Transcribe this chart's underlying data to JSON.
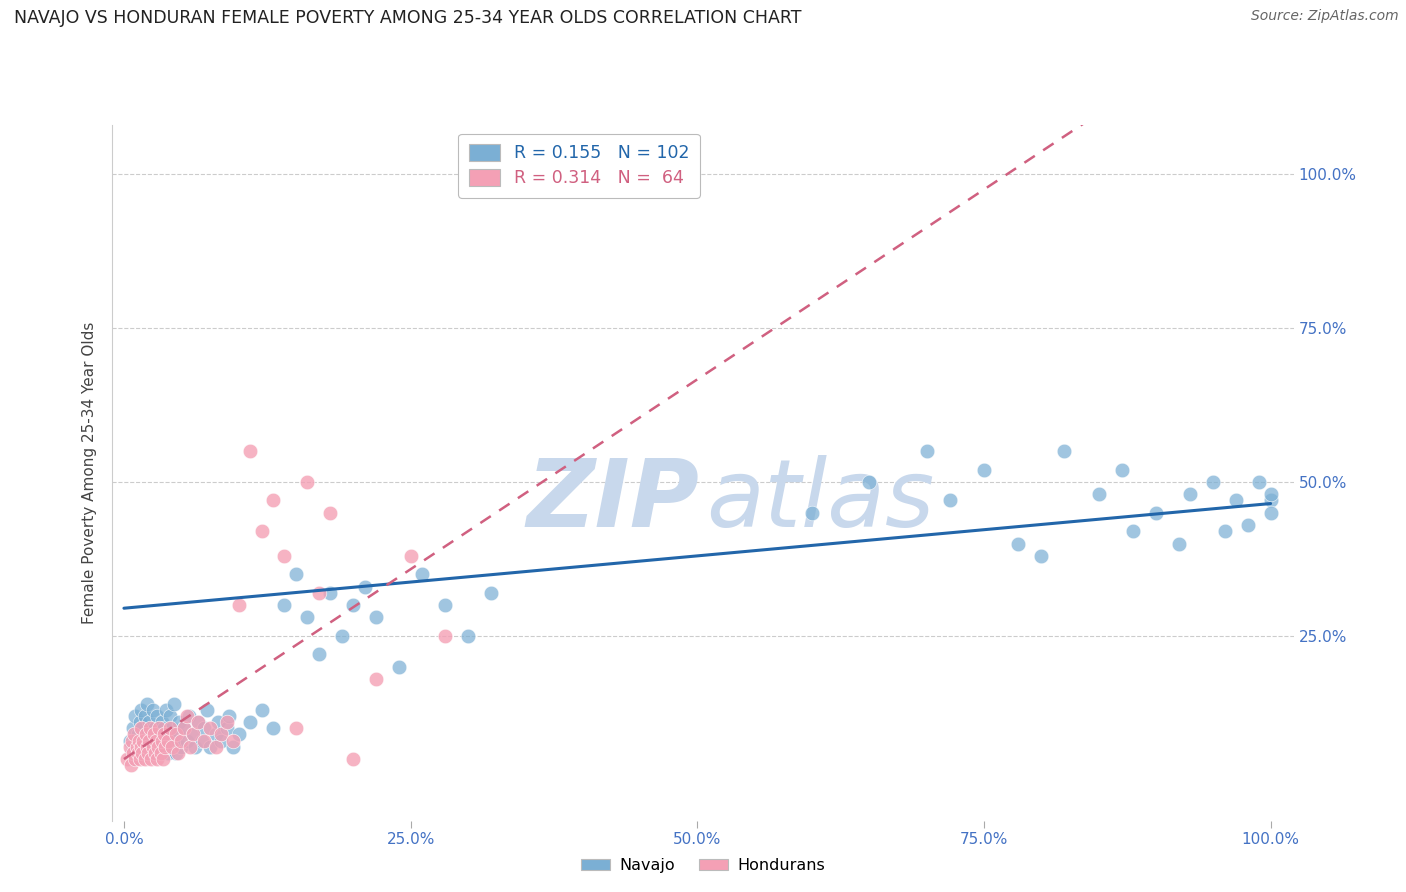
{
  "title": "NAVAJO VS HONDURAN FEMALE POVERTY AMONG 25-34 YEAR OLDS CORRELATION CHART",
  "source": "Source: ZipAtlas.com",
  "ylabel": "Female Poverty Among 25-34 Year Olds",
  "xlim": [
    -0.01,
    1.02
  ],
  "ylim": [
    -0.05,
    1.08
  ],
  "xtick_labels": [
    "0.0%",
    "25.0%",
    "50.0%",
    "75.0%",
    "100.0%"
  ],
  "xtick_vals": [
    0.0,
    0.25,
    0.5,
    0.75,
    1.0
  ],
  "ytick_labels": [
    "25.0%",
    "50.0%",
    "75.0%",
    "100.0%"
  ],
  "ytick_vals": [
    0.25,
    0.5,
    0.75,
    1.0
  ],
  "navajo_R": 0.155,
  "navajo_N": 102,
  "honduran_R": 0.314,
  "honduran_N": 64,
  "navajo_color": "#7bafd4",
  "honduran_color": "#f4a0b5",
  "navajo_line_color": "#2266aa",
  "honduran_line_color": "#d06080",
  "watermark_zip_color": "#c8d8ec",
  "watermark_atlas_color": "#c8d8ec",
  "navajo_x": [
    0.005,
    0.007,
    0.008,
    0.009,
    0.01,
    0.01,
    0.012,
    0.013,
    0.014,
    0.015,
    0.015,
    0.016,
    0.017,
    0.018,
    0.019,
    0.02,
    0.02,
    0.021,
    0.022,
    0.023,
    0.024,
    0.025,
    0.025,
    0.026,
    0.027,
    0.028,
    0.029,
    0.03,
    0.031,
    0.032,
    0.033,
    0.034,
    0.035,
    0.036,
    0.037,
    0.038,
    0.039,
    0.04,
    0.04,
    0.042,
    0.043,
    0.044,
    0.045,
    0.047,
    0.048,
    0.05,
    0.052,
    0.055,
    0.057,
    0.06,
    0.062,
    0.065,
    0.068,
    0.07,
    0.072,
    0.075,
    0.08,
    0.082,
    0.085,
    0.09,
    0.092,
    0.095,
    0.1,
    0.11,
    0.12,
    0.13,
    0.14,
    0.15,
    0.16,
    0.17,
    0.18,
    0.19,
    0.2,
    0.21,
    0.22,
    0.24,
    0.26,
    0.28,
    0.3,
    0.32,
    0.6,
    0.65,
    0.7,
    0.72,
    0.75,
    0.78,
    0.8,
    0.82,
    0.85,
    0.87,
    0.88,
    0.9,
    0.92,
    0.93,
    0.95,
    0.96,
    0.97,
    0.98,
    0.99,
    1.0,
    1.0,
    1.0
  ],
  "navajo_y": [
    0.08,
    0.06,
    0.1,
    0.05,
    0.12,
    0.07,
    0.09,
    0.06,
    0.11,
    0.08,
    0.13,
    0.1,
    0.07,
    0.12,
    0.09,
    0.06,
    0.14,
    0.08,
    0.11,
    0.07,
    0.09,
    0.06,
    0.13,
    0.08,
    0.1,
    0.07,
    0.12,
    0.08,
    0.06,
    0.09,
    0.11,
    0.07,
    0.1,
    0.08,
    0.13,
    0.06,
    0.09,
    0.07,
    0.12,
    0.1,
    0.08,
    0.14,
    0.06,
    0.09,
    0.11,
    0.07,
    0.1,
    0.08,
    0.12,
    0.09,
    0.07,
    0.11,
    0.08,
    0.1,
    0.13,
    0.07,
    0.09,
    0.11,
    0.08,
    0.1,
    0.12,
    0.07,
    0.09,
    0.11,
    0.13,
    0.1,
    0.3,
    0.35,
    0.28,
    0.22,
    0.32,
    0.25,
    0.3,
    0.33,
    0.28,
    0.2,
    0.35,
    0.3,
    0.25,
    0.32,
    0.45,
    0.5,
    0.55,
    0.47,
    0.52,
    0.4,
    0.38,
    0.55,
    0.48,
    0.52,
    0.42,
    0.45,
    0.4,
    0.48,
    0.5,
    0.42,
    0.47,
    0.43,
    0.5,
    0.47,
    0.45,
    0.48
  ],
  "honduran_x": [
    0.003,
    0.005,
    0.006,
    0.007,
    0.008,
    0.009,
    0.01,
    0.011,
    0.012,
    0.013,
    0.014,
    0.015,
    0.015,
    0.016,
    0.017,
    0.018,
    0.019,
    0.02,
    0.021,
    0.022,
    0.023,
    0.024,
    0.025,
    0.026,
    0.027,
    0.028,
    0.029,
    0.03,
    0.031,
    0.032,
    0.033,
    0.034,
    0.035,
    0.036,
    0.038,
    0.04,
    0.042,
    0.045,
    0.047,
    0.05,
    0.052,
    0.055,
    0.058,
    0.06,
    0.065,
    0.07,
    0.075,
    0.08,
    0.085,
    0.09,
    0.095,
    0.1,
    0.11,
    0.12,
    0.13,
    0.14,
    0.15,
    0.16,
    0.17,
    0.18,
    0.2,
    0.22,
    0.25,
    0.28
  ],
  "honduran_y": [
    0.05,
    0.07,
    0.04,
    0.08,
    0.06,
    0.09,
    0.05,
    0.07,
    0.06,
    0.08,
    0.05,
    0.07,
    0.1,
    0.06,
    0.08,
    0.05,
    0.09,
    0.07,
    0.06,
    0.08,
    0.1,
    0.05,
    0.07,
    0.09,
    0.06,
    0.08,
    0.05,
    0.07,
    0.1,
    0.06,
    0.08,
    0.05,
    0.09,
    0.07,
    0.08,
    0.1,
    0.07,
    0.09,
    0.06,
    0.08,
    0.1,
    0.12,
    0.07,
    0.09,
    0.11,
    0.08,
    0.1,
    0.07,
    0.09,
    0.11,
    0.08,
    0.3,
    0.55,
    0.42,
    0.47,
    0.38,
    0.1,
    0.5,
    0.32,
    0.45,
    0.05,
    0.18,
    0.38,
    0.25
  ],
  "navajo_line_x0": 0.0,
  "navajo_line_y0": 0.295,
  "navajo_line_x1": 1.0,
  "navajo_line_y1": 0.465,
  "honduran_line_x0": 0.0,
  "honduran_line_x1": 0.3,
  "honduran_line_y0": 0.05,
  "honduran_line_y1": 0.42
}
